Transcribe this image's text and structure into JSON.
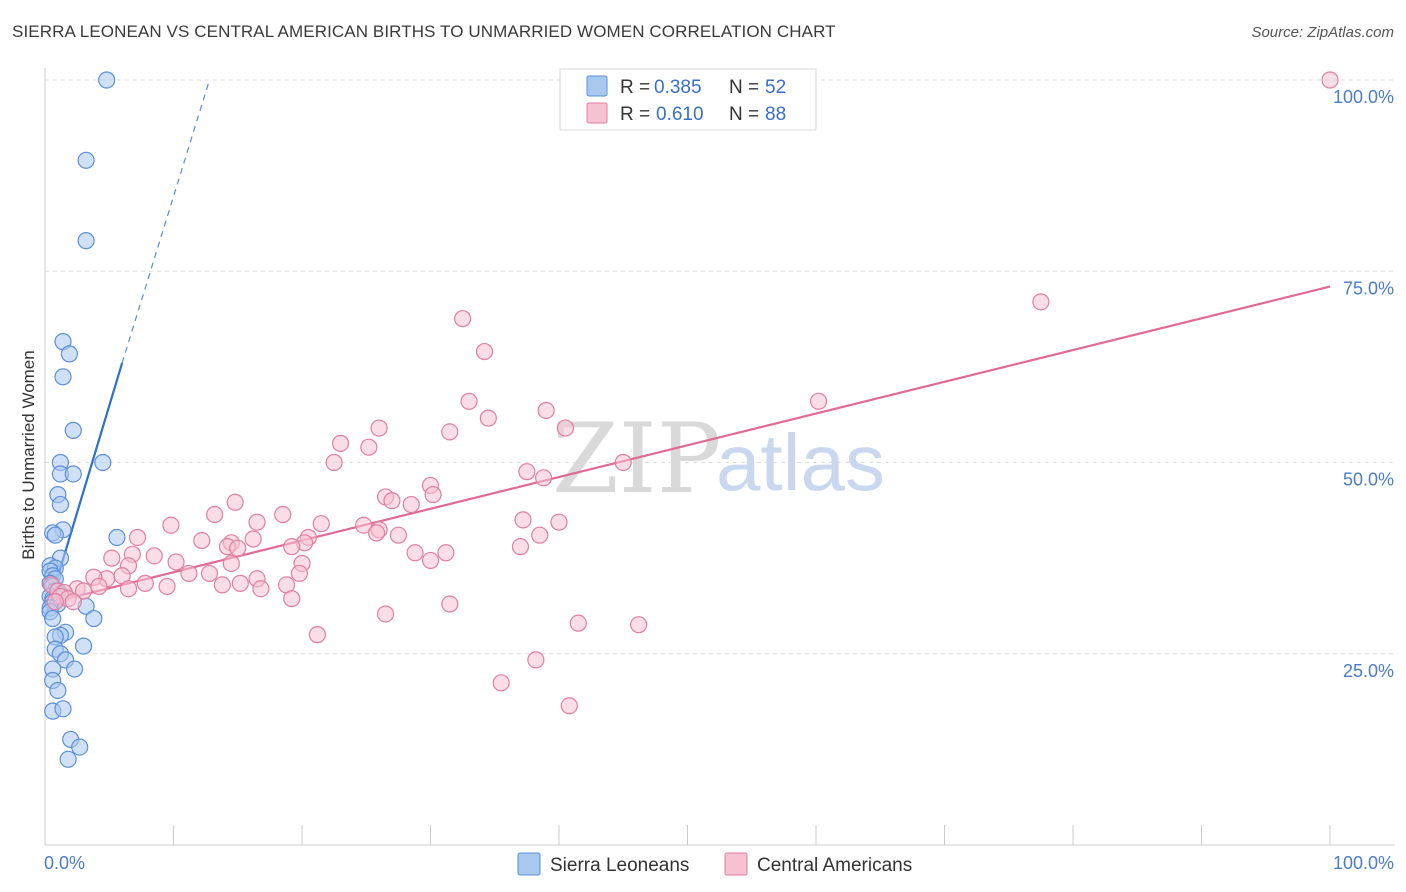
{
  "title": "SIERRA LEONEAN VS CENTRAL AMERICAN BIRTHS TO UNMARRIED WOMEN CORRELATION CHART",
  "source": "Source: ZipAtlas.com",
  "watermark": {
    "zip": "ZIP",
    "atlas": "atlas"
  },
  "colors": {
    "blue_fill": "#a9c8f0",
    "blue_stroke": "#5b8fd6",
    "blue_line": "#2f6fce",
    "pink_fill": "#f6c1d1",
    "pink_stroke": "#e07fa0",
    "pink_line": "#e06a95",
    "grid": "#dddddd",
    "tick_text": "#4a7cc8"
  },
  "chart_data": {
    "type": "scatter",
    "ylabel": "Births to Unmarried Women",
    "xlim": [
      0,
      100
    ],
    "ylim": [
      0,
      100
    ],
    "x_tick_labels": {
      "left": "0.0%",
      "right": "100.0%"
    },
    "y_ticks": [
      {
        "value": 25,
        "label": "25.0%"
      },
      {
        "value": 50,
        "label": "50.0%"
      },
      {
        "value": 75,
        "label": "75.0%"
      },
      {
        "value": 100,
        "label": "100.0%"
      }
    ],
    "legend": [
      {
        "r_label": "R =",
        "r_value": "0.385",
        "n_label": "N =",
        "n_value": "52"
      },
      {
        "r_label": "R =",
        "r_value": "0.610",
        "n_label": "N =",
        "n_value": "88"
      }
    ],
    "series": [
      {
        "name": "Sierra Leoneans",
        "trend": {
          "x0": 0.0,
          "y0": 29.5,
          "x1": 6.0,
          "y1": 63.0,
          "dash_x1": 12.8,
          "dash_y1": 100.0
        },
        "points": [
          [
            4.8,
            100.0
          ],
          [
            3.2,
            89.5
          ],
          [
            3.2,
            79.0
          ],
          [
            1.4,
            65.8
          ],
          [
            1.9,
            64.2
          ],
          [
            1.4,
            61.2
          ],
          [
            2.2,
            54.2
          ],
          [
            1.2,
            50.0
          ],
          [
            4.5,
            50.0
          ],
          [
            1.2,
            48.5
          ],
          [
            2.2,
            48.5
          ],
          [
            1.0,
            45.8
          ],
          [
            1.2,
            44.5
          ],
          [
            1.4,
            41.2
          ],
          [
            0.6,
            40.8
          ],
          [
            0.8,
            40.5
          ],
          [
            5.6,
            40.2
          ],
          [
            1.2,
            37.5
          ],
          [
            0.4,
            36.5
          ],
          [
            0.8,
            36.2
          ],
          [
            0.4,
            35.8
          ],
          [
            0.6,
            35.2
          ],
          [
            0.8,
            34.8
          ],
          [
            0.4,
            34.2
          ],
          [
            0.6,
            33.8
          ],
          [
            0.8,
            33.2
          ],
          [
            1.2,
            32.8
          ],
          [
            0.4,
            32.5
          ],
          [
            0.6,
            32.2
          ],
          [
            0.6,
            31.8
          ],
          [
            1.0,
            31.5
          ],
          [
            0.4,
            31.0
          ],
          [
            0.4,
            30.5
          ],
          [
            3.2,
            31.2
          ],
          [
            0.6,
            29.6
          ],
          [
            3.8,
            29.6
          ],
          [
            1.6,
            27.8
          ],
          [
            1.2,
            27.4
          ],
          [
            0.8,
            27.2
          ],
          [
            3.0,
            26.0
          ],
          [
            0.8,
            25.6
          ],
          [
            1.2,
            25.0
          ],
          [
            1.6,
            24.2
          ],
          [
            0.6,
            23.0
          ],
          [
            2.3,
            23.0
          ],
          [
            0.6,
            21.5
          ],
          [
            1.0,
            20.2
          ],
          [
            0.6,
            17.5
          ],
          [
            1.4,
            17.8
          ],
          [
            2.0,
            13.8
          ],
          [
            2.7,
            12.8
          ],
          [
            1.8,
            11.2
          ]
        ]
      },
      {
        "name": "Central Americans",
        "trend": {
          "x0": 0.0,
          "y0": 31.5,
          "x1": 100.0,
          "y1": 73.0
        },
        "points": [
          [
            100.0,
            100.0
          ],
          [
            77.5,
            71.0
          ],
          [
            32.5,
            68.8
          ],
          [
            34.2,
            64.5
          ],
          [
            60.2,
            58.0
          ],
          [
            33.0,
            58.0
          ],
          [
            39.0,
            56.8
          ],
          [
            34.5,
            55.8
          ],
          [
            40.5,
            54.5
          ],
          [
            26.0,
            54.5
          ],
          [
            31.5,
            54.0
          ],
          [
            23.0,
            52.5
          ],
          [
            25.2,
            52.0
          ],
          [
            22.5,
            50.0
          ],
          [
            45.0,
            50.0
          ],
          [
            37.5,
            48.8
          ],
          [
            38.8,
            48.0
          ],
          [
            30.0,
            47.0
          ],
          [
            26.5,
            45.5
          ],
          [
            30.2,
            45.8
          ],
          [
            27.0,
            45.0
          ],
          [
            28.5,
            44.5
          ],
          [
            14.8,
            44.8
          ],
          [
            13.2,
            43.2
          ],
          [
            18.5,
            43.2
          ],
          [
            37.2,
            42.5
          ],
          [
            40.0,
            42.2
          ],
          [
            16.5,
            42.2
          ],
          [
            21.5,
            42.0
          ],
          [
            9.8,
            41.8
          ],
          [
            24.8,
            41.8
          ],
          [
            26.0,
            41.2
          ],
          [
            25.8,
            40.8
          ],
          [
            38.5,
            40.5
          ],
          [
            27.5,
            40.5
          ],
          [
            7.2,
            40.2
          ],
          [
            16.2,
            40.0
          ],
          [
            12.2,
            39.8
          ],
          [
            14.5,
            39.5
          ],
          [
            20.5,
            40.2
          ],
          [
            20.2,
            39.5
          ],
          [
            14.2,
            39.0
          ],
          [
            19.2,
            39.0
          ],
          [
            15.0,
            38.8
          ],
          [
            31.2,
            38.2
          ],
          [
            37.0,
            39.0
          ],
          [
            28.8,
            38.2
          ],
          [
            6.8,
            38.0
          ],
          [
            8.5,
            37.8
          ],
          [
            5.2,
            37.5
          ],
          [
            30.0,
            37.2
          ],
          [
            14.5,
            36.8
          ],
          [
            10.2,
            37.0
          ],
          [
            20.0,
            36.8
          ],
          [
            6.5,
            36.5
          ],
          [
            12.8,
            35.5
          ],
          [
            19.8,
            35.5
          ],
          [
            11.2,
            35.5
          ],
          [
            16.5,
            34.8
          ],
          [
            18.8,
            34.0
          ],
          [
            6.0,
            35.2
          ],
          [
            4.8,
            34.8
          ],
          [
            7.8,
            34.2
          ],
          [
            13.8,
            34.0
          ],
          [
            3.8,
            35.0
          ],
          [
            15.2,
            34.2
          ],
          [
            4.2,
            33.8
          ],
          [
            0.5,
            34.0
          ],
          [
            6.5,
            33.5
          ],
          [
            9.5,
            33.8
          ],
          [
            2.5,
            33.5
          ],
          [
            1.0,
            33.2
          ],
          [
            3.0,
            33.2
          ],
          [
            1.5,
            33.0
          ],
          [
            16.8,
            33.5
          ],
          [
            1.2,
            32.5
          ],
          [
            1.8,
            32.2
          ],
          [
            2.2,
            31.8
          ],
          [
            0.8,
            31.8
          ],
          [
            31.5,
            31.5
          ],
          [
            19.2,
            32.2
          ],
          [
            21.2,
            27.5
          ],
          [
            38.2,
            24.2
          ],
          [
            41.5,
            29.0
          ],
          [
            46.2,
            28.8
          ],
          [
            35.5,
            21.2
          ],
          [
            40.8,
            18.2
          ],
          [
            26.5,
            30.2
          ]
        ]
      }
    ]
  }
}
